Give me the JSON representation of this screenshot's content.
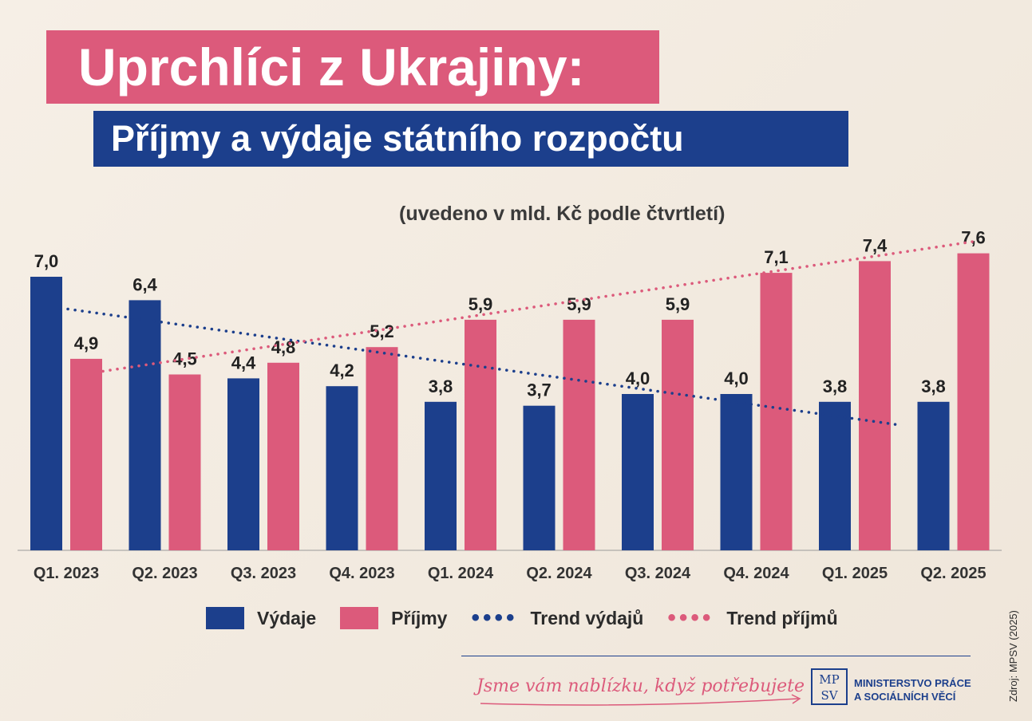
{
  "title": "Uprchlíci z Ukrajiny:",
  "subtitle": "Příjmy a výdaje státního rozpočtu",
  "units_note": "(uvedeno v mld. Kč podle čtvrtletí)",
  "colors": {
    "vydaje": "#1c3f8c",
    "prijmy": "#dc5a7b",
    "title_bg": "#dc5a7b",
    "subtitle_bg": "#1c3f8c"
  },
  "chart_data": {
    "type": "bar",
    "title": "Příjmy a výdaje státního rozpočtu",
    "xlabel": "",
    "ylabel": "mld. Kč",
    "ylim": [
      0,
      8
    ],
    "categories": [
      "Q1. 2023",
      "Q2. 2023",
      "Q3. 2023",
      "Q4. 2023",
      "Q1. 2024",
      "Q2. 2024",
      "Q3. 2024",
      "Q4. 2024",
      "Q1. 2025",
      "Q2. 2025"
    ],
    "series": [
      {
        "name": "Výdaje",
        "values": [
          7.0,
          6.4,
          4.4,
          4.2,
          3.8,
          3.7,
          4.0,
          4.0,
          3.8,
          3.8
        ],
        "labels": [
          "7,0",
          "6,4",
          "4,4",
          "4,2",
          "3,8",
          "3,7",
          "4,0",
          "4,0",
          "3,8",
          "3,8"
        ]
      },
      {
        "name": "Příjmy",
        "values": [
          4.9,
          4.5,
          4.8,
          5.2,
          5.9,
          5.9,
          5.9,
          7.1,
          7.4,
          7.6
        ],
        "labels": [
          "4,9",
          "4,5",
          "4,8",
          "5,2",
          "5,9",
          "5,9",
          "5,9",
          "7,1",
          "7,4",
          "7,6"
        ]
      }
    ],
    "trends": [
      {
        "name": "Trend výdajů",
        "start": 6.2,
        "end": 3.2
      },
      {
        "name": "Trend příjmů",
        "start": 4.5,
        "end": 7.9
      }
    ],
    "grid": false,
    "legend": "bottom"
  },
  "legend": {
    "vydaje": "Výdaje",
    "prijmy": "Příjmy",
    "trend_vydaju": "Trend výdajů",
    "trend_prijmu": "Trend příjmů"
  },
  "footer": {
    "slogan": "Jsme vám nablízku, když potřebujete",
    "logo_top": "MP",
    "logo_bottom": "SV",
    "ministry_line1": "MINISTERSTVO PRÁCE",
    "ministry_line2": "A SOCIÁLNÍCH VĚCÍ",
    "source": "Zdroj: MPSV (2025)"
  }
}
